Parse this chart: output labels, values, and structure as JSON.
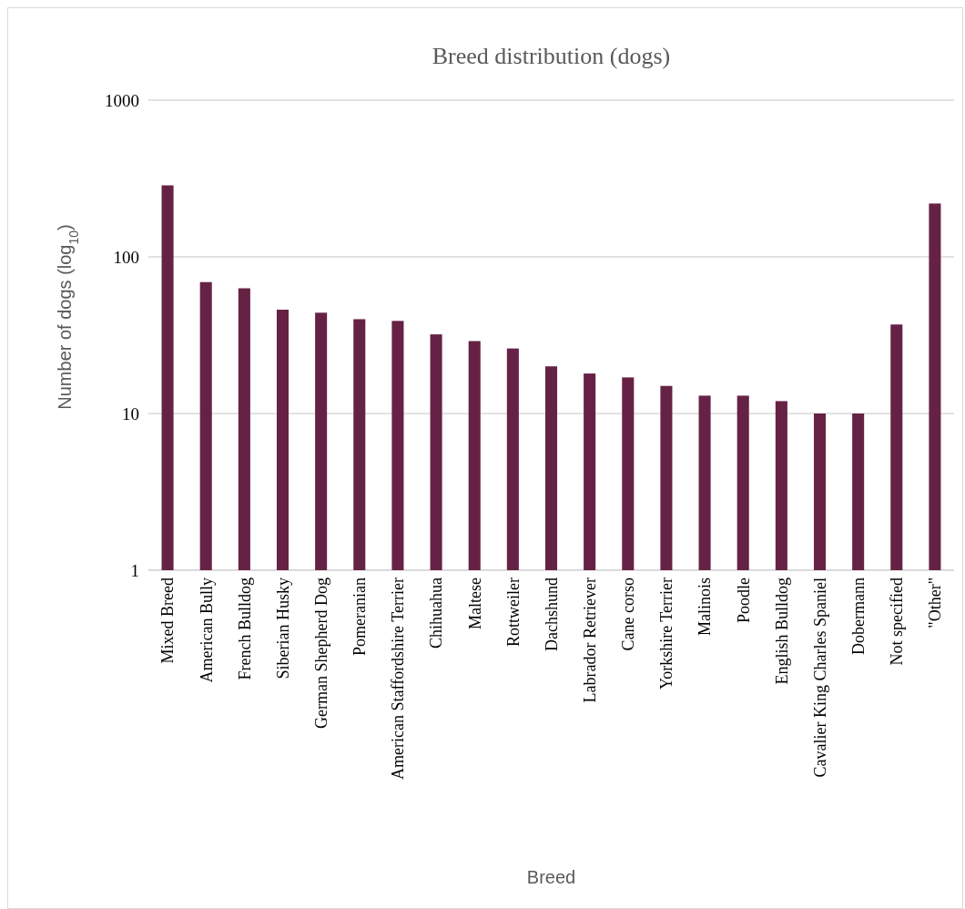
{
  "chart_data": {
    "type": "bar",
    "title": "Breed distribution (dogs)",
    "xlabel": "Breed",
    "ylabel": "Number of dogs (log$_{10}$)",
    "categories": [
      "Mixed Breed",
      "American Bully",
      "French Bulldog",
      "Siberian Husky",
      "German Shepherd Dog",
      "Pomeranian",
      "American Staffordshire Terrier",
      "Chihuahua",
      "Maltese",
      "Rottweiler",
      "Dachshund",
      "Labrador Retriever",
      "Cane corso",
      "Yorkshire Terrier",
      "Malinois",
      "Poodle",
      "English Bulldog",
      "Cavalier King Charles Spaniel",
      "Dobermann",
      "Not specified",
      "\"Other\""
    ],
    "values": [
      286,
      69,
      63,
      46,
      44,
      40,
      39,
      32,
      29,
      26,
      20,
      18,
      17,
      15,
      13,
      13,
      12,
      10,
      10,
      37,
      219
    ],
    "color": "#662245",
    "ylim": [
      1,
      1000
    ],
    "yticks": [
      1,
      10,
      100,
      1000
    ],
    "log": true,
    "grid": "y"
  }
}
